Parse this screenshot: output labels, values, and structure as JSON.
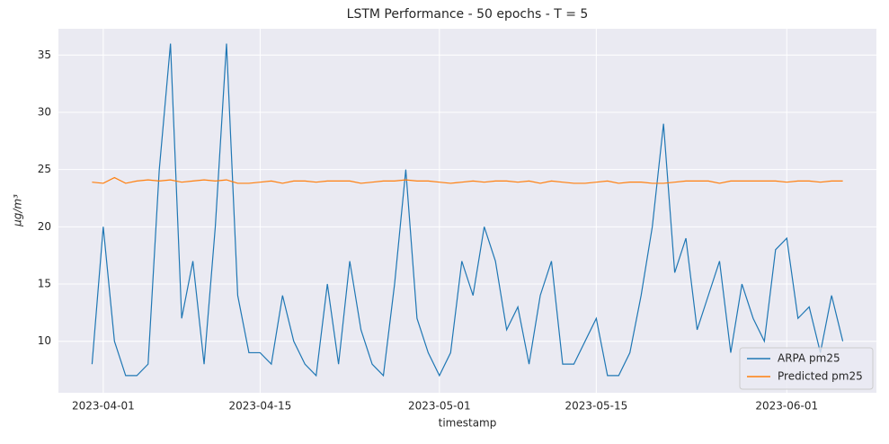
{
  "chart_data": {
    "type": "line",
    "title": "LSTM Performance - 50 epochs - T = 5",
    "xlabel": "timestamp",
    "ylabel": "μg/m³",
    "x": [
      "2023-03-31",
      "2023-04-01",
      "2023-04-02",
      "2023-04-03",
      "2023-04-04",
      "2023-04-05",
      "2023-04-06",
      "2023-04-07",
      "2023-04-08",
      "2023-04-09",
      "2023-04-10",
      "2023-04-11",
      "2023-04-12",
      "2023-04-13",
      "2023-04-14",
      "2023-04-15",
      "2023-04-16",
      "2023-04-17",
      "2023-04-18",
      "2023-04-19",
      "2023-04-20",
      "2023-04-21",
      "2023-04-22",
      "2023-04-23",
      "2023-04-24",
      "2023-04-25",
      "2023-04-26",
      "2023-04-27",
      "2023-04-28",
      "2023-04-29",
      "2023-04-30",
      "2023-05-01",
      "2023-05-02",
      "2023-05-03",
      "2023-05-04",
      "2023-05-05",
      "2023-05-06",
      "2023-05-07",
      "2023-05-08",
      "2023-05-09",
      "2023-05-10",
      "2023-05-11",
      "2023-05-12",
      "2023-05-13",
      "2023-05-14",
      "2023-05-15",
      "2023-05-16",
      "2023-05-17",
      "2023-05-18",
      "2023-05-19",
      "2023-05-20",
      "2023-05-21",
      "2023-05-22",
      "2023-05-23",
      "2023-05-24",
      "2023-05-25",
      "2023-05-26",
      "2023-05-27",
      "2023-05-28",
      "2023-05-29",
      "2023-05-30",
      "2023-05-31",
      "2023-06-01",
      "2023-06-02",
      "2023-06-03",
      "2023-06-04",
      "2023-06-05",
      "2023-06-06"
    ],
    "series": [
      {
        "name": "ARPA pm25",
        "color": "#1f77b4",
        "values": [
          8,
          20,
          10,
          7,
          7,
          8,
          25,
          36,
          12,
          17,
          8,
          20,
          36,
          14,
          9,
          9,
          8,
          14,
          10,
          8,
          7,
          15,
          8,
          17,
          11,
          8,
          7,
          15,
          25,
          12,
          9,
          7,
          9,
          17,
          14,
          20,
          17,
          11,
          13,
          8,
          14,
          17,
          8,
          8,
          10,
          12,
          7,
          7,
          9,
          14,
          20,
          29,
          16,
          19,
          11,
          14,
          17,
          9,
          15,
          12,
          10,
          18,
          19,
          12,
          13,
          9,
          14,
          10
        ]
      },
      {
        "name": "Predicted pm25",
        "color": "#ff7f0e",
        "values": [
          23.9,
          23.8,
          24.3,
          23.8,
          24.0,
          24.1,
          24.0,
          24.1,
          23.9,
          24.0,
          24.1,
          24.0,
          24.1,
          23.8,
          23.8,
          23.9,
          24.0,
          23.8,
          24.0,
          24.0,
          23.9,
          24.0,
          24.0,
          24.0,
          23.8,
          23.9,
          24.0,
          24.0,
          24.1,
          24.0,
          24.0,
          23.9,
          23.8,
          23.9,
          24.0,
          23.9,
          24.0,
          24.0,
          23.9,
          24.0,
          23.8,
          24.0,
          23.9,
          23.8,
          23.8,
          23.9,
          24.0,
          23.8,
          23.9,
          23.9,
          23.8,
          23.8,
          23.9,
          24.0,
          24.0,
          24.0,
          23.8,
          24.0,
          24.0,
          24.0,
          24.0,
          24.0,
          23.9,
          24.0,
          24.0,
          23.9,
          24.0,
          24.0
        ]
      }
    ],
    "xlim": [
      "2023-03-28",
      "2023-06-09"
    ],
    "xticks": [
      "2023-04-01",
      "2023-04-15",
      "2023-05-01",
      "2023-05-15",
      "2023-06-01"
    ],
    "ylim": [
      5.5,
      37.3
    ],
    "yticks": [
      10,
      15,
      20,
      25,
      30,
      35
    ],
    "grid": true,
    "legend": "lower right"
  }
}
